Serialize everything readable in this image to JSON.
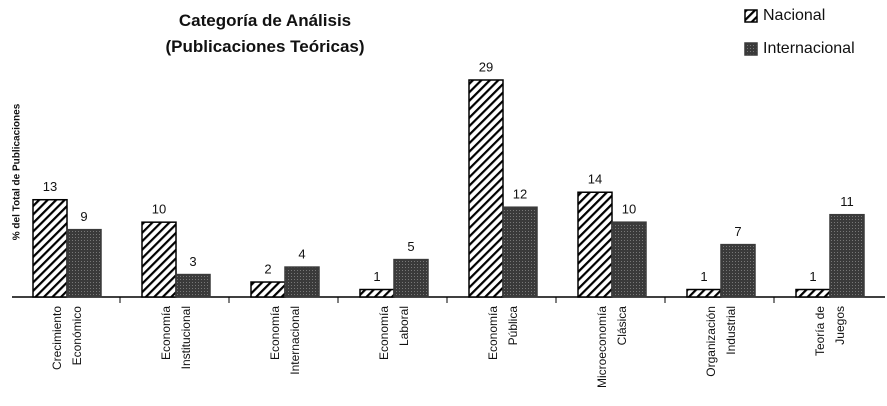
{
  "chart_data": {
    "type": "bar",
    "title": "Categoría de Análisis\n(Publicaciones Teóricas)",
    "y_label": "% del Total de Publicaciones",
    "categories": [
      "Crecimiento\nEconómico",
      "Economía\nInstitucional",
      "Economía\nInternacional",
      "Economía\nLaboral",
      "Economía\nPública",
      "Microeconomía\nClásica",
      "Organización\nIndustrial",
      "Teoría de\nJuegos"
    ],
    "series": [
      {
        "name": "Nacional",
        "color": "#000000",
        "values": [
          13,
          10,
          2,
          1,
          29,
          14,
          1,
          1
        ]
      },
      {
        "name": "Internacional",
        "color": "#3a3a3a",
        "values": [
          9,
          3,
          4,
          5,
          12,
          10,
          7,
          11
        ]
      }
    ],
    "legend": "top-right"
  }
}
